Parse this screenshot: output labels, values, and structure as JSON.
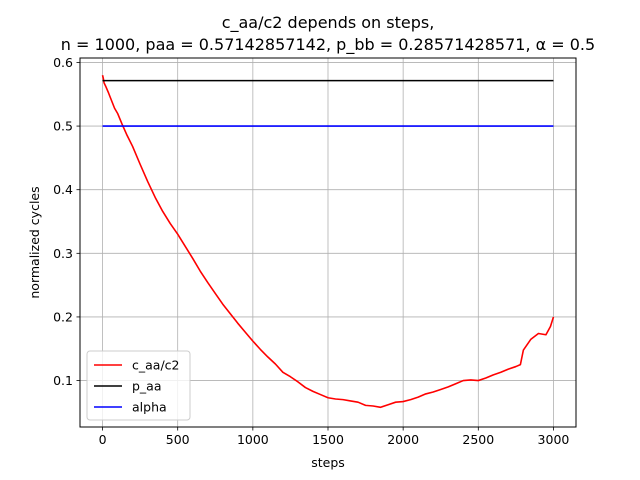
{
  "chart_data": {
    "type": "line",
    "title": "c_aa/c2 depends on steps,",
    "subtitle": "n = 1000, paa = 0.57142857142, p_bb = 0.28571428571, α = 0.5",
    "xlabel": "steps",
    "ylabel": "normalized cycles",
    "xlim": [
      -150,
      3150
    ],
    "ylim": [
      0.027,
      0.607
    ],
    "xticks": [
      0,
      500,
      1000,
      1500,
      2000,
      2500,
      3000
    ],
    "xtick_labels": [
      "0",
      "500",
      "1000",
      "1500",
      "2000",
      "2500",
      "3000"
    ],
    "yticks": [
      0.1,
      0.2,
      0.3,
      0.4,
      0.5,
      0.6
    ],
    "ytick_labels": [
      "0.1",
      "0.2",
      "0.3",
      "0.4",
      "0.5",
      "0.6"
    ],
    "grid": true,
    "legend_position": "lower-left",
    "series": [
      {
        "name": "c_aa/c2",
        "color": "#ff0000",
        "x": [
          0,
          5,
          10,
          20,
          40,
          60,
          80,
          100,
          130,
          160,
          200,
          250,
          300,
          350,
          400,
          450,
          500,
          550,
          600,
          650,
          700,
          750,
          800,
          850,
          900,
          950,
          1000,
          1050,
          1100,
          1150,
          1200,
          1250,
          1300,
          1350,
          1400,
          1450,
          1500,
          1550,
          1600,
          1650,
          1700,
          1750,
          1800,
          1850,
          1900,
          1950,
          2000,
          2050,
          2100,
          2150,
          2200,
          2250,
          2300,
          2350,
          2400,
          2450,
          2500,
          2550,
          2600,
          2650,
          2700,
          2750,
          2780,
          2800,
          2850,
          2900,
          2950,
          2980,
          3000
        ],
        "y": [
          0.58,
          0.575,
          0.568,
          0.563,
          0.552,
          0.54,
          0.528,
          0.52,
          0.503,
          0.487,
          0.468,
          0.44,
          0.413,
          0.388,
          0.366,
          0.347,
          0.33,
          0.311,
          0.292,
          0.272,
          0.254,
          0.237,
          0.22,
          0.205,
          0.19,
          0.176,
          0.162,
          0.149,
          0.137,
          0.126,
          0.113,
          0.106,
          0.098,
          0.089,
          0.083,
          0.078,
          0.073,
          0.071,
          0.07,
          0.068,
          0.066,
          0.061,
          0.06,
          0.058,
          0.062,
          0.066,
          0.067,
          0.07,
          0.074,
          0.079,
          0.082,
          0.086,
          0.09,
          0.095,
          0.1,
          0.101,
          0.1,
          0.104,
          0.109,
          0.113,
          0.118,
          0.122,
          0.125,
          0.148,
          0.165,
          0.174,
          0.172,
          0.185,
          0.2
        ]
      },
      {
        "name": "p_aa",
        "color": "#000000",
        "x": [
          0,
          3000
        ],
        "y": [
          0.57142857142,
          0.57142857142
        ]
      },
      {
        "name": "alpha",
        "color": "#0000ff",
        "x": [
          0,
          3000
        ],
        "y": [
          0.5,
          0.5
        ]
      }
    ]
  }
}
